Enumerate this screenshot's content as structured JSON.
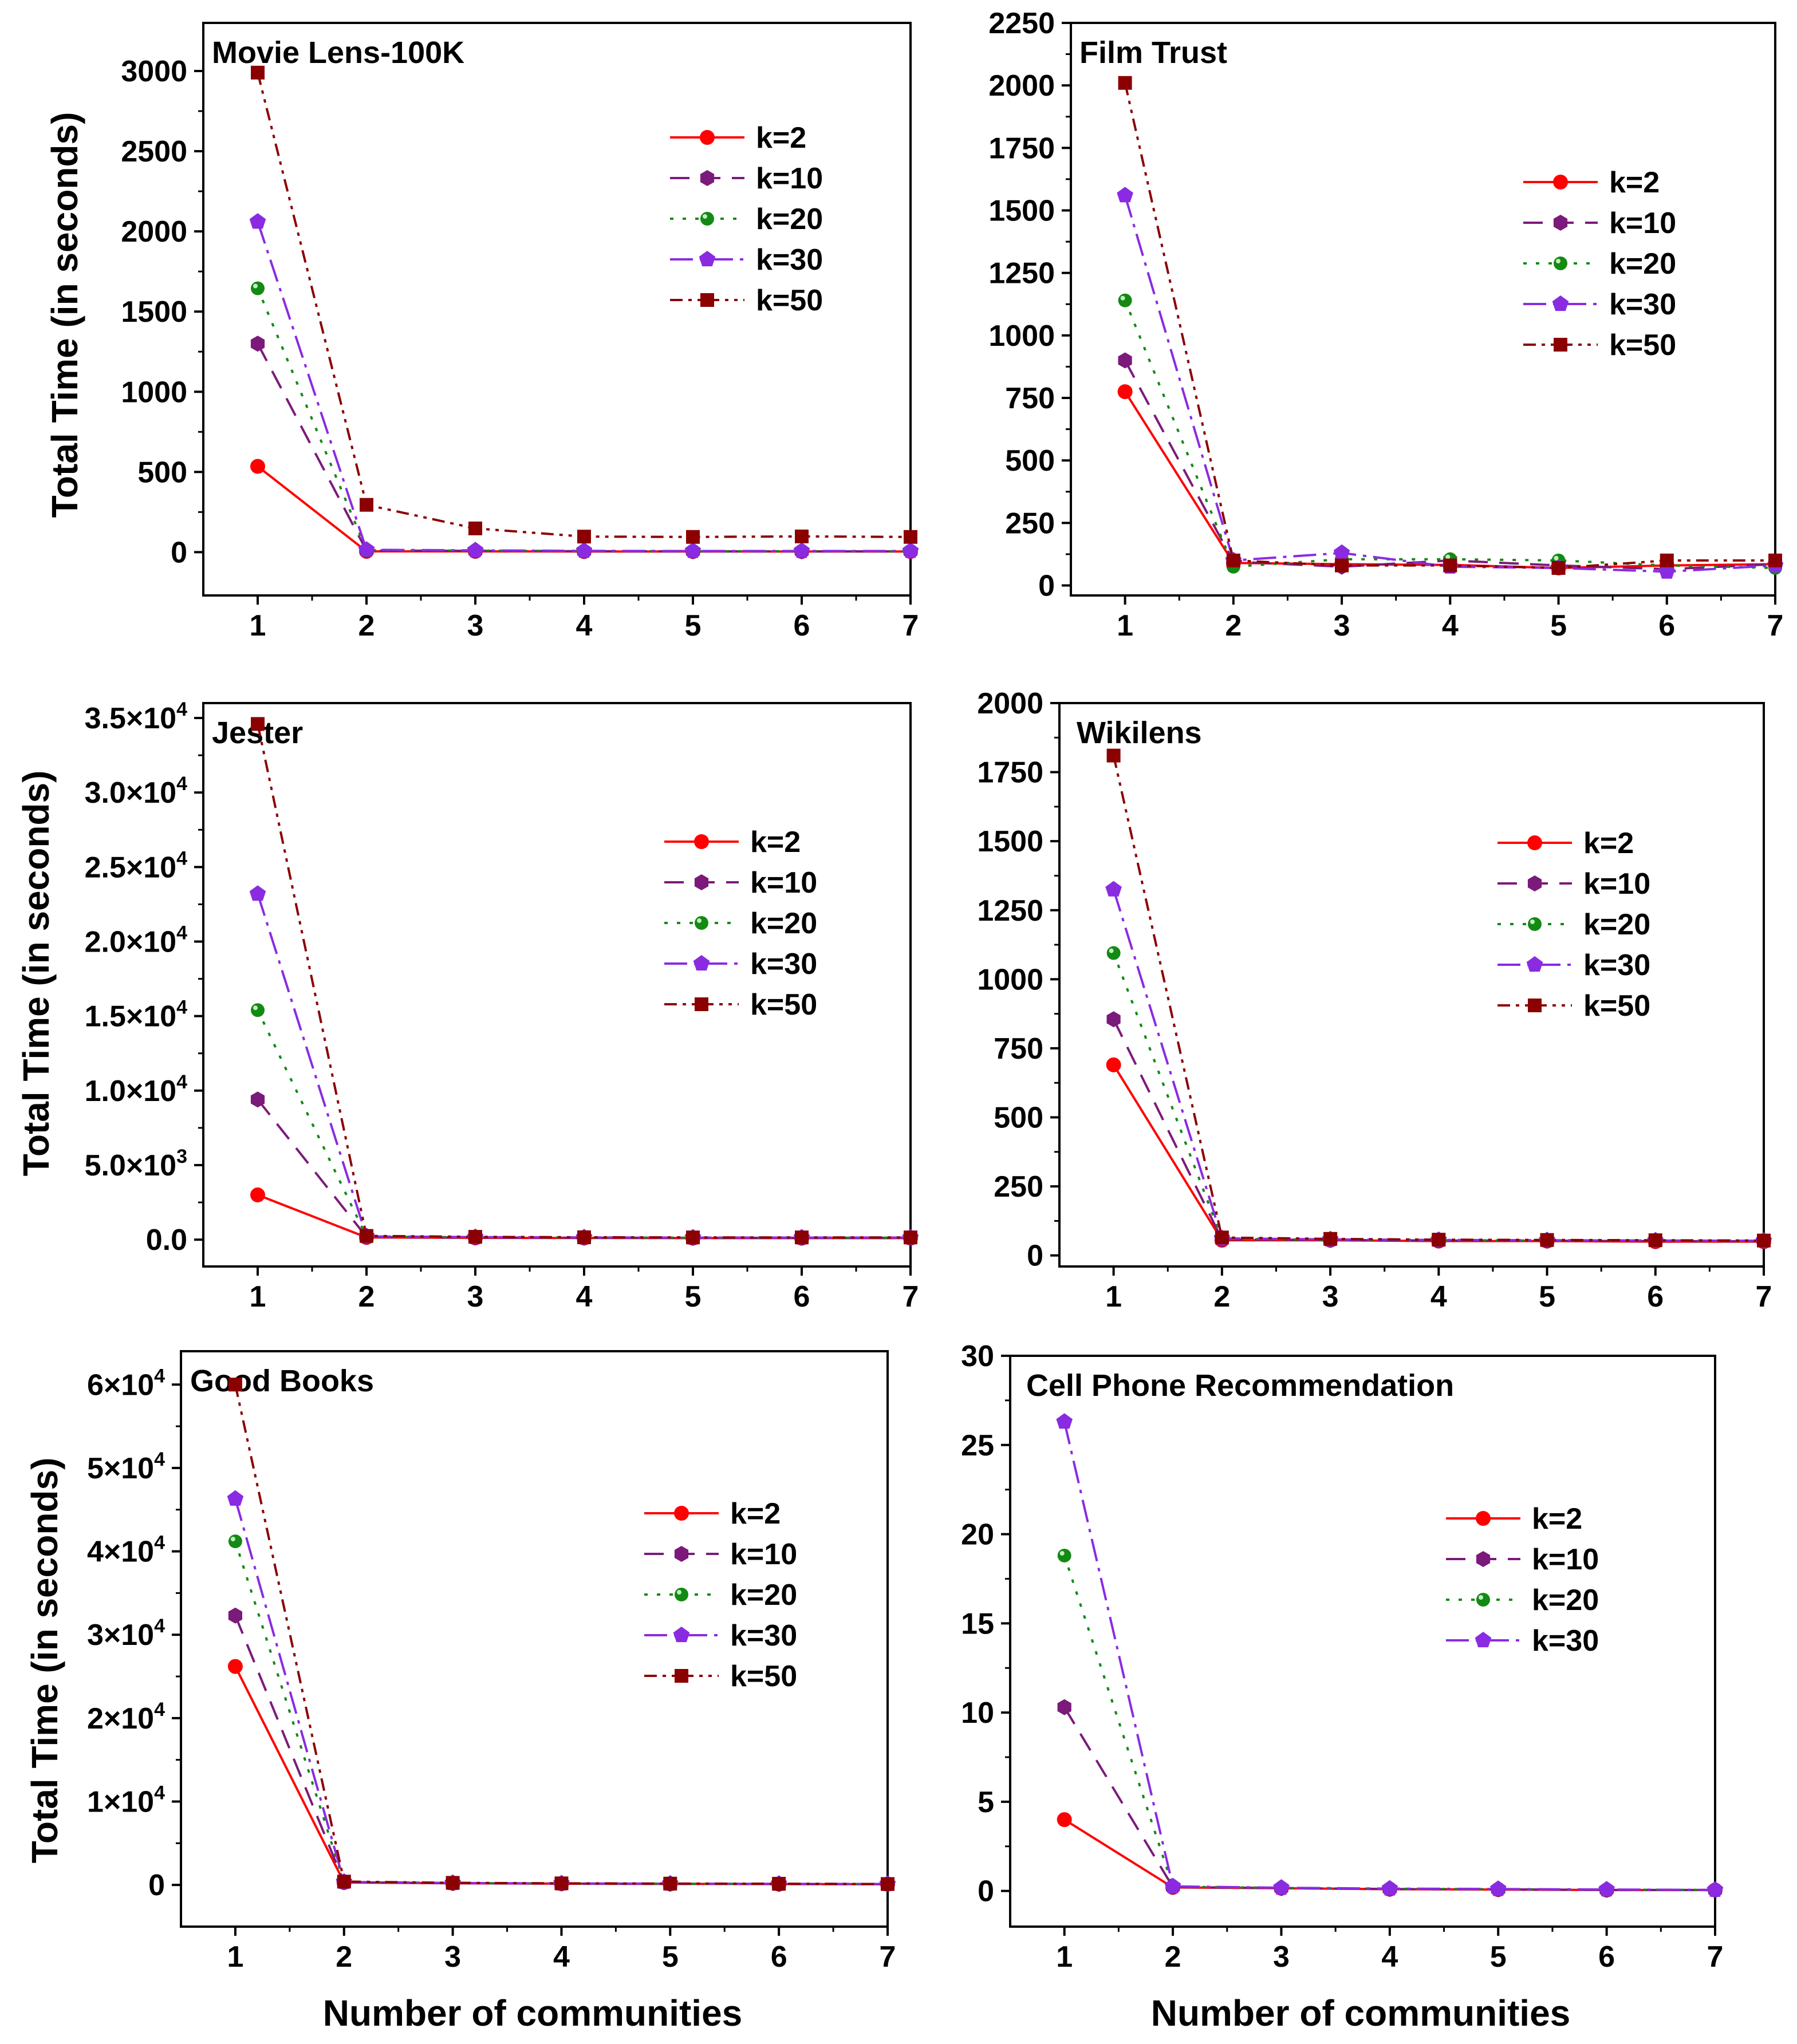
{
  "colors": {
    "k=2": "#ff0000",
    "k=10": "#7b1a7b",
    "k=20": "#138a13",
    "k=30": "#8a2be2",
    "k=50": "#8b0000"
  },
  "axes_text": {
    "xlabel": "Number of communities",
    "ylabel": "Total Time (in seconds)"
  },
  "chart_data": [
    {
      "type": "line",
      "title": "Movie Lens-100K",
      "xlabel": "Number of communities",
      "ylabel": "Total Time (in seconds)",
      "x": [
        1,
        2,
        3,
        4,
        5,
        6,
        7
      ],
      "xlim": [
        0.5,
        7
      ],
      "ylim": [
        -270,
        3300
      ],
      "yticks": [
        0,
        500,
        1000,
        1500,
        2000,
        2500,
        3000
      ],
      "ytick_labels": [
        "0",
        "500",
        "1000",
        "1500",
        "2000",
        "2500",
        "3000"
      ],
      "legend_position": "upper-right",
      "series": [
        {
          "name": "k=2",
          "values": [
            535,
            5,
            5,
            4,
            4,
            4,
            4
          ]
        },
        {
          "name": "k=10",
          "values": [
            1300,
            10,
            8,
            6,
            5,
            5,
            5
          ]
        },
        {
          "name": "k=20",
          "values": [
            1645,
            12,
            9,
            7,
            6,
            6,
            6
          ]
        },
        {
          "name": "k=30",
          "values": [
            2060,
            15,
            11,
            8,
            7,
            7,
            7
          ]
        },
        {
          "name": "k=50",
          "values": [
            2990,
            295,
            148,
            97,
            95,
            98,
            95
          ]
        }
      ]
    },
    {
      "type": "line",
      "title": "Film Trust",
      "xlabel": "Number of communities",
      "ylabel": "Total Time (in seconds)",
      "x": [
        1,
        2,
        3,
        4,
        5,
        6,
        7
      ],
      "xlim": [
        0.5,
        7
      ],
      "ylim": [
        -40,
        2250
      ],
      "yticks": [
        0,
        250,
        500,
        750,
        1000,
        1250,
        1500,
        1750,
        2000,
        2250
      ],
      "ytick_labels": [
        "0",
        "250",
        "500",
        "750",
        "1000",
        "1250",
        "1500",
        "1750",
        "2000",
        "2250"
      ],
      "legend_position": "upper-right",
      "series": [
        {
          "name": "k=2",
          "values": [
            775,
            90,
            85,
            82,
            70,
            80,
            85
          ]
        },
        {
          "name": "k=10",
          "values": [
            900,
            95,
            75,
            100,
            80,
            65,
            85
          ]
        },
        {
          "name": "k=20",
          "values": [
            1140,
            75,
            105,
            105,
            100,
            80,
            70
          ]
        },
        {
          "name": "k=30",
          "values": [
            1560,
            100,
            130,
            75,
            70,
            55,
            80
          ]
        },
        {
          "name": "k=50",
          "values": [
            2010,
            100,
            80,
            80,
            70,
            100,
            100
          ]
        }
      ]
    },
    {
      "type": "line",
      "title": "Jester",
      "xlabel": "Number of communities",
      "ylabel": "Total Time (in seconds)",
      "x": [
        1,
        2,
        3,
        4,
        5,
        6,
        7
      ],
      "xlim": [
        0.5,
        7
      ],
      "ylim": [
        -1800,
        36000
      ],
      "yticks": [
        0,
        5000,
        10000,
        15000,
        20000,
        25000,
        30000,
        35000
      ],
      "ytick_labels": [
        "0.0",
        "5.0×10^3",
        "1.0×10^4",
        "1.5×10^4",
        "2.0×10^4",
        "2.5×10^4",
        "3.0×10^4",
        "3.5×10^4"
      ],
      "legend_position": "upper-right",
      "series": [
        {
          "name": "k=2",
          "values": [
            3000,
            150,
            120,
            110,
            100,
            100,
            100
          ]
        },
        {
          "name": "k=10",
          "values": [
            9400,
            180,
            140,
            130,
            120,
            120,
            120
          ]
        },
        {
          "name": "k=20",
          "values": [
            15400,
            200,
            160,
            140,
            130,
            130,
            130
          ]
        },
        {
          "name": "k=30",
          "values": [
            23200,
            220,
            170,
            150,
            140,
            140,
            140
          ]
        },
        {
          "name": "k=50",
          "values": [
            34600,
            250,
            190,
            160,
            150,
            150,
            150
          ]
        }
      ]
    },
    {
      "type": "line",
      "title": "Wikilens",
      "xlabel": "Number of communities",
      "ylabel": "Total Time (in seconds)",
      "x": [
        1,
        2,
        3,
        4,
        5,
        6,
        7
      ],
      "xlim": [
        0.5,
        7
      ],
      "ylim": [
        -40,
        2000
      ],
      "yticks": [
        0,
        250,
        500,
        750,
        1000,
        1250,
        1500,
        1750,
        2000
      ],
      "ytick_labels": [
        "0",
        "250",
        "500",
        "750",
        "1000",
        "1250",
        "1500",
        "1750",
        "2000"
      ],
      "legend_position": "upper-right",
      "series": [
        {
          "name": "k=2",
          "values": [
            690,
            55,
            55,
            52,
            52,
            50,
            50
          ]
        },
        {
          "name": "k=10",
          "values": [
            855,
            58,
            56,
            54,
            53,
            52,
            51
          ]
        },
        {
          "name": "k=20",
          "values": [
            1095,
            60,
            57,
            55,
            54,
            53,
            52
          ]
        },
        {
          "name": "k=30",
          "values": [
            1325,
            62,
            58,
            56,
            55,
            54,
            53
          ]
        },
        {
          "name": "k=50",
          "values": [
            1810,
            65,
            60,
            57,
            56,
            55,
            54
          ]
        }
      ]
    },
    {
      "type": "line",
      "title": "Good Books",
      "xlabel": "Number of communities",
      "ylabel": "Total Time (in seconds)",
      "x": [
        1,
        2,
        3,
        4,
        5,
        6,
        7
      ],
      "xlim": [
        0.5,
        7
      ],
      "ylim": [
        -5000,
        64000
      ],
      "yticks": [
        0,
        10000,
        20000,
        30000,
        40000,
        50000,
        60000
      ],
      "ytick_labels": [
        "0",
        "1×10^4",
        "2×10^4",
        "3×10^4",
        "4×10^4",
        "5×10^4",
        "6×10^4"
      ],
      "legend_position": "upper-right",
      "series": [
        {
          "name": "k=2",
          "values": [
            26200,
            300,
            200,
            150,
            120,
            100,
            90
          ]
        },
        {
          "name": "k=10",
          "values": [
            32300,
            320,
            210,
            160,
            130,
            110,
            95
          ]
        },
        {
          "name": "k=20",
          "values": [
            41200,
            340,
            220,
            170,
            140,
            120,
            100
          ]
        },
        {
          "name": "k=30",
          "values": [
            46300,
            360,
            230,
            180,
            150,
            130,
            105
          ]
        },
        {
          "name": "k=50",
          "values": [
            60000,
            400,
            250,
            190,
            160,
            140,
            110
          ]
        }
      ]
    },
    {
      "type": "line",
      "title": "Cell Phone Recommendation",
      "xlabel": "Number of communities",
      "ylabel": "Total Time (in seconds)",
      "x": [
        1,
        2,
        3,
        4,
        5,
        6,
        7
      ],
      "xlim": [
        0.5,
        7
      ],
      "ylim": [
        -2,
        30
      ],
      "yticks": [
        0,
        5,
        10,
        15,
        20,
        25,
        30
      ],
      "ytick_labels": [
        "0",
        "5",
        "10",
        "15",
        "20",
        "25",
        "30"
      ],
      "legend_position": "upper-right",
      "series": [
        {
          "name": "k=2",
          "values": [
            4.0,
            0.2,
            0.15,
            0.1,
            0.08,
            0.05,
            0.05
          ]
        },
        {
          "name": "k=10",
          "values": [
            10.3,
            0.22,
            0.16,
            0.11,
            0.09,
            0.06,
            0.05
          ]
        },
        {
          "name": "k=20",
          "values": [
            18.8,
            0.24,
            0.17,
            0.12,
            0.1,
            0.07,
            0.06
          ]
        },
        {
          "name": "k=30",
          "values": [
            26.3,
            0.26,
            0.18,
            0.13,
            0.11,
            0.08,
            0.06
          ]
        }
      ]
    }
  ]
}
